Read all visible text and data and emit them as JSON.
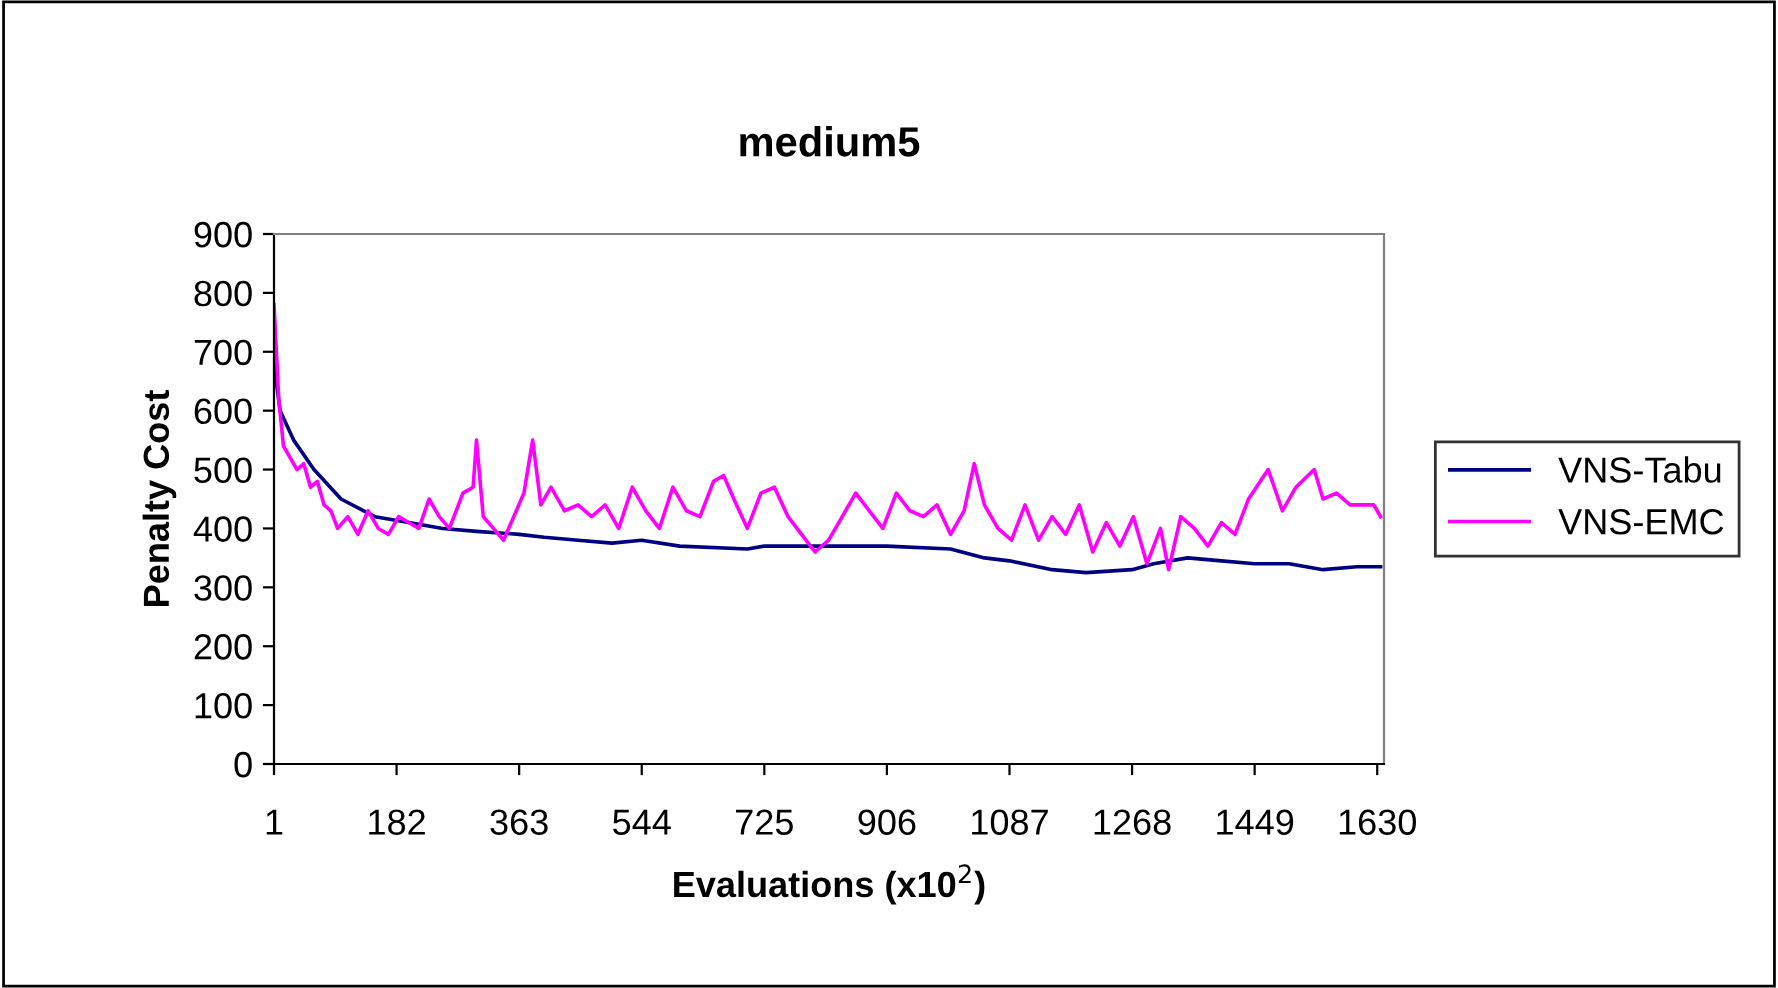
{
  "chart_data": {
    "type": "line",
    "title": "medium5",
    "xlabel": "Evaluations (x10$^{2}$)",
    "ylabel": "Penalty Cost",
    "xlim": [
      1,
      1640
    ],
    "xticks": [
      1,
      182,
      363,
      544,
      725,
      906,
      1087,
      1268,
      1449,
      1630
    ],
    "ylim": [
      0,
      900
    ],
    "yticks": [
      0,
      100,
      200,
      300,
      400,
      500,
      600,
      700,
      800,
      900
    ],
    "grid": false,
    "legend": "right",
    "marker": "none",
    "line_style": "solid",
    "series": [
      {
        "name": "VNS-Tabu",
        "color": "#000080",
        "x": [
          1,
          10,
          30,
          60,
          100,
          150,
          200,
          250,
          300,
          363,
          400,
          450,
          500,
          544,
          600,
          700,
          725,
          800,
          906,
          1000,
          1050,
          1087,
          1150,
          1200,
          1268,
          1300,
          1350,
          1400,
          1449,
          1500,
          1550,
          1600,
          1635
        ],
        "values": [
          680,
          600,
          550,
          500,
          450,
          420,
          410,
          400,
          395,
          390,
          385,
          380,
          375,
          380,
          370,
          365,
          370,
          370,
          370,
          365,
          350,
          345,
          330,
          325,
          330,
          340,
          350,
          345,
          340,
          340,
          330,
          335,
          335
        ]
      },
      {
        "name": "VNS-EMC",
        "color": "#ff00ff",
        "x": [
          1,
          8,
          15,
          25,
          35,
          45,
          55,
          65,
          75,
          85,
          95,
          110,
          125,
          140,
          155,
          170,
          185,
          200,
          215,
          230,
          245,
          260,
          280,
          295,
          300,
          310,
          325,
          340,
          355,
          370,
          383,
          395,
          410,
          430,
          450,
          470,
          490,
          510,
          530,
          550,
          570,
          590,
          610,
          630,
          650,
          665,
          680,
          700,
          720,
          740,
          760,
          780,
          800,
          820,
          840,
          860,
          880,
          900,
          920,
          940,
          960,
          980,
          1000,
          1020,
          1035,
          1050,
          1070,
          1090,
          1110,
          1130,
          1150,
          1170,
          1190,
          1210,
          1230,
          1250,
          1270,
          1290,
          1310,
          1322,
          1340,
          1360,
          1380,
          1400,
          1420,
          1440,
          1469,
          1490,
          1510,
          1537,
          1550,
          1570,
          1590,
          1610,
          1625,
          1635
        ],
        "values": [
          780,
          620,
          540,
          520,
          500,
          510,
          470,
          480,
          440,
          430,
          400,
          420,
          390,
          430,
          400,
          390,
          420,
          410,
          400,
          450,
          420,
          400,
          460,
          470,
          550,
          420,
          400,
          380,
          420,
          460,
          550,
          440,
          470,
          430,
          440,
          420,
          440,
          400,
          470,
          430,
          400,
          470,
          430,
          420,
          480,
          490,
          450,
          400,
          460,
          470,
          420,
          390,
          360,
          380,
          420,
          460,
          430,
          400,
          460,
          430,
          420,
          440,
          390,
          430,
          510,
          440,
          400,
          380,
          440,
          380,
          420,
          390,
          440,
          360,
          410,
          370,
          420,
          340,
          400,
          330,
          420,
          400,
          370,
          410,
          390,
          450,
          500,
          430,
          470,
          500,
          450,
          460,
          440,
          440,
          440,
          420
        ]
      }
    ]
  }
}
